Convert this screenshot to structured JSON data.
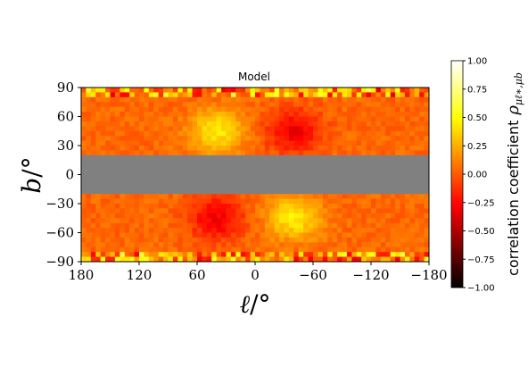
{
  "chart_data": {
    "type": "heatmap",
    "title": "Model",
    "xlabel_symbol": "ℓ",
    "xlabel_unit": "/°",
    "ylabel_symbol": "b",
    "ylabel_unit": "/°",
    "xlim": [
      180,
      -180
    ],
    "ylim": [
      -90,
      90
    ],
    "x_ticks": [
      180,
      120,
      60,
      0,
      -60,
      -120,
      -180
    ],
    "x_tick_labels": [
      "180",
      "120",
      "60",
      "0",
      "−60",
      "−120",
      "−180"
    ],
    "y_ticks": [
      90,
      60,
      30,
      0,
      -30,
      -60,
      -90
    ],
    "y_tick_labels": [
      "90",
      "60",
      "30",
      "0",
      "−30",
      "−60",
      "−90"
    ],
    "masked_band_b": [
      -20,
      20
    ],
    "masked_color": "#808080",
    "colormap": "hot",
    "colorbar": {
      "label_text": "correlation coefficient",
      "label_symbol": "ρ",
      "label_subscript": "μℓ∗,μb",
      "range": [
        -1.0,
        1.0
      ],
      "ticks": [
        1.0,
        0.75,
        0.5,
        0.25,
        0.0,
        -0.25,
        -0.5,
        -0.75,
        -1.0
      ],
      "tick_labels": [
        "1.00",
        "0.75",
        "0.50",
        "0.25",
        "0.00",
        "−0.25",
        "−0.50",
        "−0.75",
        "−1.00"
      ]
    },
    "grid": {
      "n_l": 72,
      "n_b": 36,
      "l_step": 5,
      "b_step": 5
    },
    "features": [
      {
        "l": 40,
        "b": 45,
        "value": 0.4
      },
      {
        "l": -40,
        "b": 45,
        "value": -0.35
      },
      {
        "l": 40,
        "b": -45,
        "value": -0.35
      },
      {
        "l": -40,
        "b": -45,
        "value": 0.4
      }
    ],
    "background_value": 0.0
  }
}
